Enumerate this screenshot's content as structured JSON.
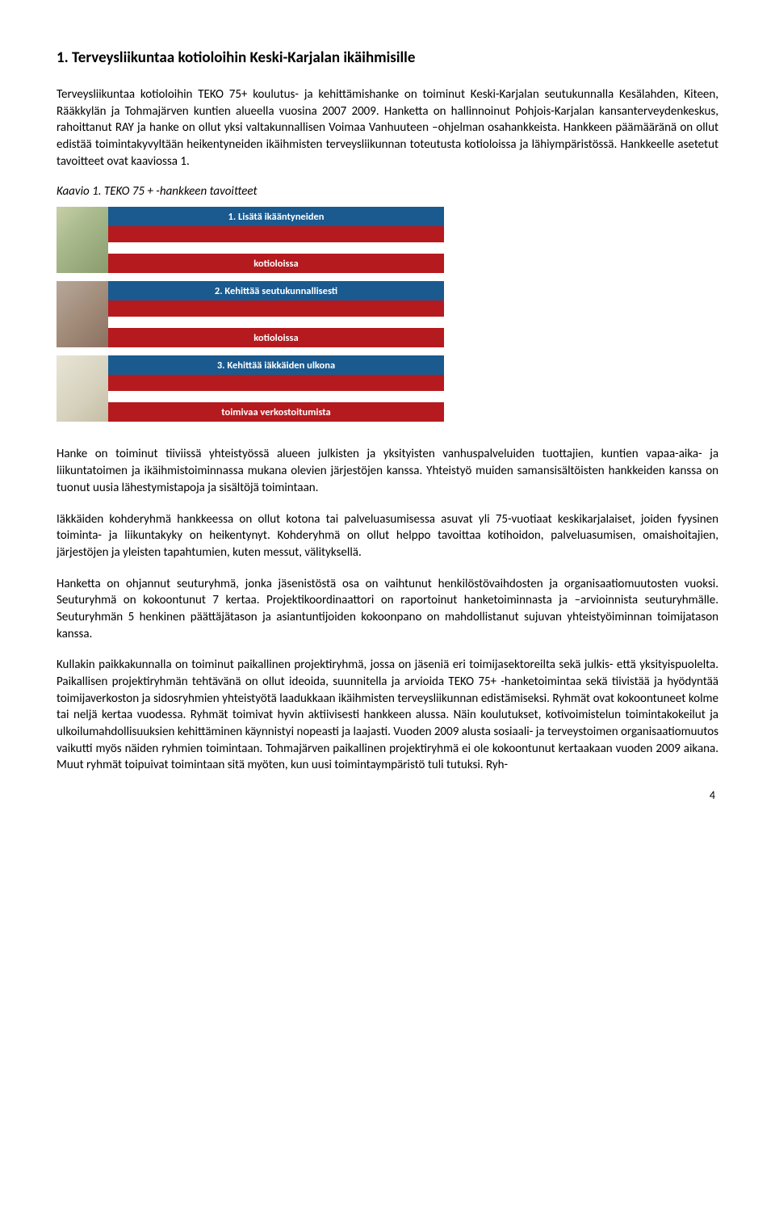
{
  "section": {
    "title": "1.  Terveysliikuntaa kotioloihin Keski-Karjalan ikäihmisille"
  },
  "paragraphs": {
    "p1": "Terveysliikuntaa kotioloihin TEKO 75+ koulutus- ja kehittämishanke on toiminut Keski-Karjalan seutukunnalla Kesälahden, Kiteen, Rääkkylän ja Tohmajärven kuntien alueella vuosina 2007 2009. Hanketta on hallinnoinut Pohjois-Karjalan kansanterveydenkeskus, rahoittanut RAY ja hanke on ollut yksi valtakunnallisen Voimaa Vanhuuteen –ohjelman osahankkeista. Hankkeen päämääränä on ollut edistää toimintakyvyltään heikentyneiden ikäihmisten terveysliikunnan toteutusta kotioloissa ja lähiympäristössä. Hankkeelle asetetut tavoitteet ovat kaaviossa 1.",
    "caption": "Kaavio 1. TEKO 75 + -hankkeen tavoitteet",
    "p2": "Hanke on toiminut tiiviissä yhteistyössä alueen julkisten ja yksityisten vanhuspalveluiden tuottajien, kuntien vapaa-aika- ja liikuntatoimen ja ikäihmistoiminnassa mukana olevien järjestöjen kanssa. Yhteistyö muiden samansisältöisten hankkeiden kanssa on tuonut uusia lähestymistapoja ja sisältöjä toimintaan.",
    "p3": "Iäkkäiden kohderyhmä hankkeessa on ollut kotona tai palveluasumisessa asuvat yli 75-vuotiaat keskikarjalaiset, joiden fyysinen toiminta- ja liikuntakyky on heikentynyt. Kohderyhmä on ollut helppo tavoittaa kotihoidon, palveluasumisen, omaishoitajien, järjestöjen ja yleisten tapahtumien, kuten messut, välityksellä.",
    "p4": "Hanketta on ohjannut seuturyhmä, jonka jäsenistöstä osa on vaihtunut henkilöstövaihdosten ja organisaatiomuutosten vuoksi. Seuturyhmä on kokoontunut 7 kertaa. Projektikoordinaattori on raportoinut hanketoiminnasta ja –arvioinnista seuturyhmälle. Seuturyhmän 5 henkinen päättäjätason ja asiantuntijoiden kokoonpano on mahdollistanut sujuvan yhteistyöiminnan toimijatason kanssa.",
    "p5": "Kullakin paikkakunnalla on toiminut paikallinen projektiryhmä, jossa on jäseniä eri toimijasektoreilta sekä julkis- että yksityispuolelta. Paikallisen projektiryhmän tehtävänä on ollut ideoida, suunnitella ja arvioida TEKO 75+ -hanketoimintaa sekä tiivistää ja hyödyntää toimijaverkoston ja sidosryhmien yhteistyötä laadukkaan ikäihmisten terveysliikunnan edistämiseksi. Ryhmät ovat kokoontuneet kolme tai neljä kertaa vuodessa. Ryhmät toimivat hyvin aktiivisesti hankkeen alussa. Näin koulutukset, kotivoimistelun toimintakokeilut ja ulkoilumahdollisuuksien kehittäminen käynnistyi nopeasti ja laajasti. Vuoden 2009 alusta sosiaali- ja terveystoimen organisaatiomuutos vaikutti myös näiden ryhmien toimintaan. Tohmajärven paikallinen projektiryhmä ei ole kokoontunut kertaakaan vuoden 2009 aikana. Muut ryhmät toipuivat toimintaan sitä myöten, kun uusi toimintaympäristö tuli tutuksi. Ryh-"
  },
  "goals": {
    "g1": {
      "blue": "1. Lisätä ikääntyneiden",
      "red_top": "",
      "red_bottom": "kotioloissa"
    },
    "g2": {
      "blue": "2. Kehittää seutukunnallisesti",
      "red_top": "",
      "red_bottom": "kotioloissa"
    },
    "g3": {
      "blue": "3. Kehittää iäkkäiden ulkona",
      "red_top": "",
      "red_bottom": "toimivaa verkostoitumista"
    }
  },
  "page_number": "4",
  "colors": {
    "blue_bar": "#1a5a8f",
    "red_bar": "#b51a1e",
    "text": "#000000",
    "bg": "#ffffff"
  }
}
